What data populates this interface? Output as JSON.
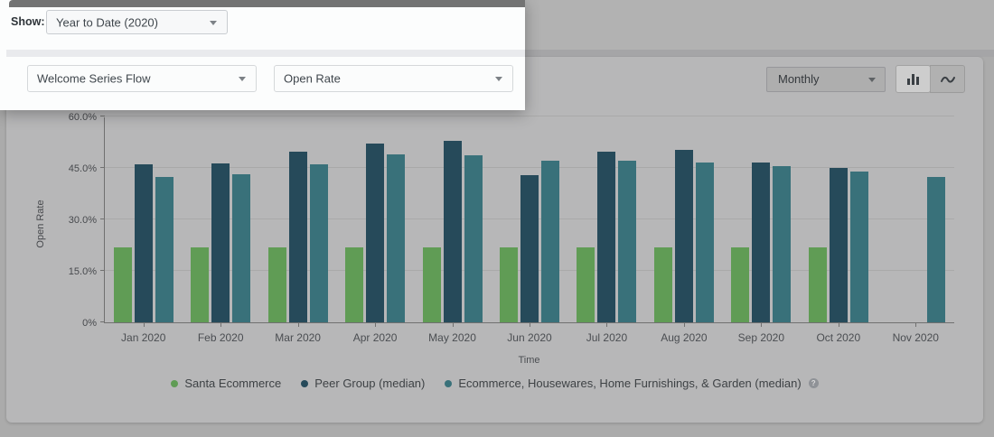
{
  "filters": {
    "show_label": "Show:",
    "show_value": "Year to Date (2020)",
    "flow_value": "Welcome Series Flow",
    "metric_value": "Open Rate"
  },
  "toolbar": {
    "granularity_value": "Monthly",
    "chart_type_selected": "bar"
  },
  "help_icon_glyph": "?",
  "chart_data": {
    "type": "bar",
    "title": "",
    "xlabel": "Time",
    "ylabel": "Open Rate",
    "ylim": [
      0,
      60
    ],
    "ytick_labels": [
      "0%",
      "15.0%",
      "30.0%",
      "45.0%",
      "60.0%"
    ],
    "grid": true,
    "legend_position": "bottom",
    "categories": [
      "Jan 2020",
      "Feb 2020",
      "Mar 2020",
      "Apr 2020",
      "May 2020",
      "Jun 2020",
      "Jul 2020",
      "Aug 2020",
      "Sep 2020",
      "Oct 2020",
      "Nov 2020"
    ],
    "series": [
      {
        "name": "Santa Ecommerce",
        "color": "#609c55",
        "values": [
          21.8,
          21.8,
          21.8,
          21.8,
          21.8,
          21.8,
          21.8,
          21.8,
          21.8,
          21.8,
          null
        ]
      },
      {
        "name": "Peer Group (median)",
        "color": "#264a5a",
        "values": [
          46.0,
          46.3,
          49.8,
          52.1,
          52.8,
          43.0,
          49.8,
          50.2,
          46.5,
          44.9,
          null
        ]
      },
      {
        "name": "Ecommerce, Housewares, Home Furnishings, & Garden (median)",
        "color": "#39717a",
        "values": [
          42.3,
          43.2,
          46.1,
          49.0,
          48.6,
          47.2,
          47.0,
          46.7,
          45.6,
          43.9,
          42.4
        ]
      }
    ]
  }
}
